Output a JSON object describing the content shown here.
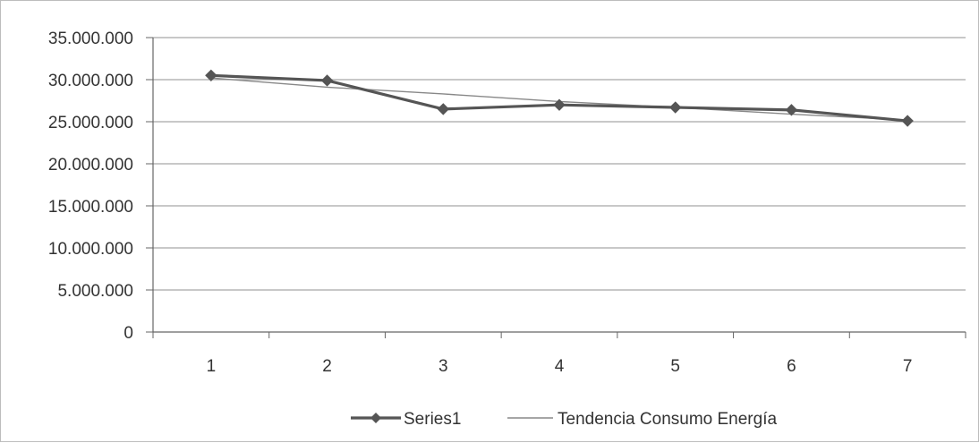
{
  "chart_data": {
    "type": "line",
    "categories": [
      "1",
      "2",
      "3",
      "4",
      "5",
      "6",
      "7"
    ],
    "series": [
      {
        "name": "Series1",
        "values": [
          30500000,
          29900000,
          26500000,
          27000000,
          26700000,
          26400000,
          25100000
        ],
        "color": "#555555",
        "marker": "diamond"
      },
      {
        "name": "Tendencia Consumo Energía",
        "values": [
          30200000,
          29100000,
          28300000,
          27400000,
          26700000,
          25900000,
          25200000
        ],
        "color": "#888888",
        "marker": "none"
      }
    ],
    "ylim": [
      0,
      35000000
    ],
    "y_ticks": [
      0,
      5000000,
      10000000,
      15000000,
      20000000,
      25000000,
      30000000,
      35000000
    ],
    "y_tick_labels": [
      "0",
      "5.000.000",
      "10.000.000",
      "15.000.000",
      "20.000.000",
      "25.000.000",
      "30.000.000",
      "35.000.000"
    ],
    "grid": true,
    "legend_position": "bottom",
    "title": "",
    "xlabel": "",
    "ylabel": ""
  }
}
